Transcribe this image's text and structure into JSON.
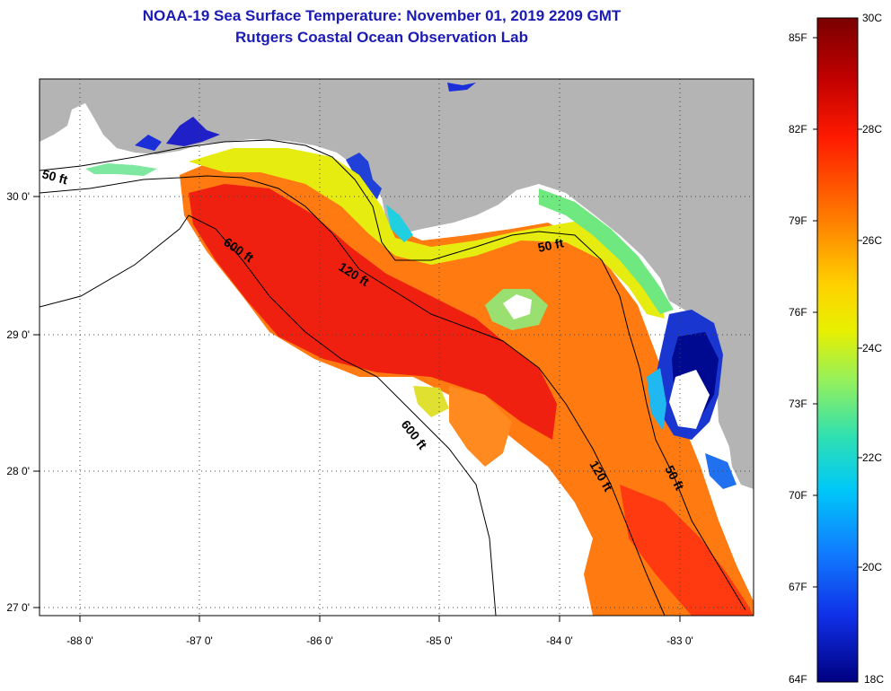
{
  "header": {
    "title": "NOAA-19 Sea Surface Temperature:  November 01, 2019 2209 GMT",
    "subtitle": "Rutgers Coastal Ocean Observation Lab"
  },
  "map": {
    "lon_labels": [
      "-88 0'",
      "-87 0'",
      "-86 0'",
      "-85 0'",
      "-84 0'",
      "-83 0'"
    ],
    "lat_labels": [
      "30 0'",
      "29 0'",
      "28 0'",
      "27 0'"
    ],
    "depth_labels": [
      "50 ft",
      "600 ft",
      "120 ft",
      "50 ft",
      "600 ft",
      "120 ft",
      "50 ft"
    ],
    "colors": {
      "land": "#b4b4b4",
      "ocean_nodata": "#ffffff",
      "contour": "#000000"
    }
  },
  "colorbar": {
    "celsius": [
      "30C",
      "28C",
      "26C",
      "24C",
      "22C",
      "20C",
      "18C"
    ],
    "fahrenheit": [
      "85F",
      "82F",
      "79F",
      "76F",
      "73F",
      "70F",
      "67F",
      "64F"
    ],
    "range_c": [
      18,
      30
    ],
    "palette": [
      "#7a0000",
      "#e00000",
      "#ff5a00",
      "#ffb000",
      "#f0f000",
      "#a8f050",
      "#40e0a0",
      "#00d8f0",
      "#1090ff",
      "#1040f0",
      "#0010b0",
      "#000080"
    ]
  }
}
